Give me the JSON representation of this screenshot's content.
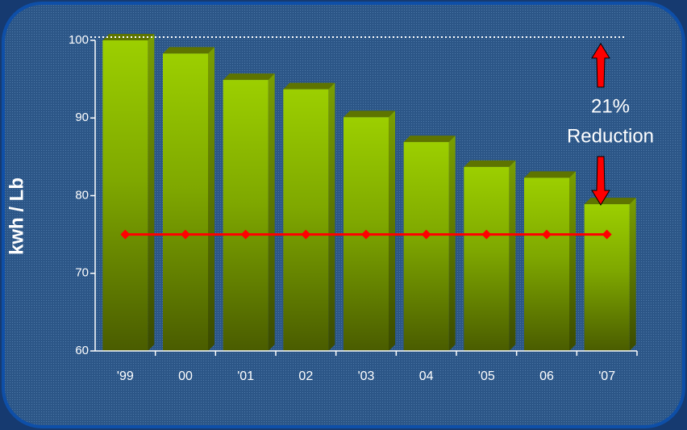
{
  "chart_data": {
    "type": "bar",
    "ylabel": "kwh / Lb",
    "categories": [
      "'99",
      "00",
      "'01",
      "02",
      "'03",
      "04",
      "'05",
      "06",
      "'07"
    ],
    "series": [
      {
        "type": "bar",
        "color": "#99cc00",
        "values": [
          100,
          98.3,
          94.9,
          93.7,
          90.1,
          86.9,
          83.7,
          82.3,
          78.9
        ]
      },
      {
        "type": "line",
        "color": "#ff0000",
        "values": [
          75,
          75,
          75,
          75,
          75,
          75,
          75,
          75,
          75
        ]
      }
    ],
    "ylim": [
      60,
      100
    ],
    "yticks": [
      60,
      70,
      80,
      90,
      100
    ],
    "reference_line": 100,
    "annotations": [
      "21%",
      "Reduction"
    ]
  }
}
